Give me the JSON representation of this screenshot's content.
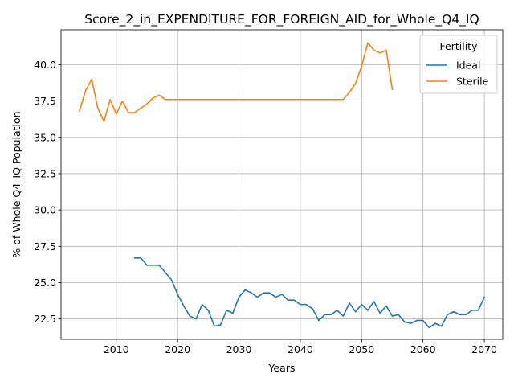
{
  "chart_data": {
    "type": "line",
    "title": "Score_2_in_EXPENDITURE_FOR_FOREIGN_AID_for_Whole_Q4_IQ",
    "xlabel": "Years",
    "ylabel": "% of Whole Q4_IQ Population",
    "xlim": [
      2001,
      2073
    ],
    "ylim": [
      21.1,
      42.4
    ],
    "xticks": [
      2010,
      2020,
      2030,
      2040,
      2050,
      2060,
      2070
    ],
    "yticks": [
      22.5,
      25.0,
      27.5,
      30.0,
      32.5,
      35.0,
      37.5,
      40.0
    ],
    "ytick_labels": [
      "22.5",
      "25.0",
      "27.5",
      "30.0",
      "32.5",
      "35.0",
      "37.5",
      "40.0"
    ],
    "grid": true,
    "legend": {
      "title": "Fertility",
      "placement": "top-right"
    },
    "series": [
      {
        "name": "Ideal",
        "color": "#1f77b4",
        "x": [
          2013,
          2014,
          2015,
          2016,
          2017,
          2018,
          2019,
          2020,
          2021,
          2022,
          2023,
          2024,
          2025,
          2026,
          2027,
          2028,
          2029,
          2030,
          2031,
          2032,
          2033,
          2034,
          2035,
          2036,
          2037,
          2038,
          2039,
          2040,
          2041,
          2042,
          2043,
          2044,
          2045,
          2046,
          2047,
          2048,
          2049,
          2050,
          2051,
          2052,
          2053,
          2054,
          2055,
          2056,
          2057,
          2058,
          2059,
          2060,
          2061,
          2062,
          2063,
          2064,
          2065,
          2066,
          2067,
          2068,
          2069,
          2070
        ],
        "y": [
          26.7,
          26.7,
          26.2,
          26.2,
          26.2,
          25.7,
          25.2,
          24.2,
          23.4,
          22.7,
          22.5,
          23.5,
          23.1,
          22.0,
          22.1,
          23.1,
          22.9,
          24.0,
          24.5,
          24.3,
          24.0,
          24.3,
          24.3,
          24.0,
          24.2,
          23.8,
          23.8,
          23.5,
          23.5,
          23.2,
          22.4,
          22.8,
          22.8,
          23.1,
          22.7,
          23.6,
          23.0,
          23.5,
          23.1,
          23.7,
          22.9,
          23.4,
          22.7,
          22.8,
          22.3,
          22.2,
          22.4,
          22.4,
          21.9,
          22.2,
          22.0,
          22.8,
          23.0,
          22.8,
          22.8,
          23.1,
          23.1,
          24.0
        ]
      },
      {
        "name": "Sterile",
        "color": "#ff7f0e",
        "x": [
          2004,
          2005,
          2006,
          2007,
          2008,
          2009,
          2010,
          2011,
          2012,
          2013,
          2014,
          2015,
          2016,
          2017,
          2018,
          2019,
          2020,
          2021,
          2022,
          2023,
          2024,
          2025,
          2026,
          2027,
          2028,
          2029,
          2030,
          2031,
          2032,
          2033,
          2034,
          2035,
          2036,
          2037,
          2038,
          2039,
          2040,
          2041,
          2042,
          2043,
          2044,
          2045,
          2046,
          2047,
          2048,
          2049,
          2050,
          2051,
          2052,
          2053,
          2054,
          2055
        ],
        "y": [
          36.8,
          38.2,
          39.0,
          37.0,
          36.1,
          37.6,
          36.6,
          37.5,
          36.7,
          36.7,
          37.0,
          37.3,
          37.7,
          37.9,
          37.6,
          37.6,
          37.6,
          37.6,
          37.6,
          37.6,
          37.6,
          37.6,
          37.6,
          37.6,
          37.6,
          37.6,
          37.6,
          37.6,
          37.6,
          37.6,
          37.6,
          37.6,
          37.6,
          37.6,
          37.6,
          37.6,
          37.6,
          37.6,
          37.6,
          37.6,
          37.6,
          37.6,
          37.6,
          37.6,
          38.1,
          38.7,
          39.9,
          41.5,
          41.0,
          40.8,
          41.0,
          38.3
        ]
      }
    ]
  }
}
